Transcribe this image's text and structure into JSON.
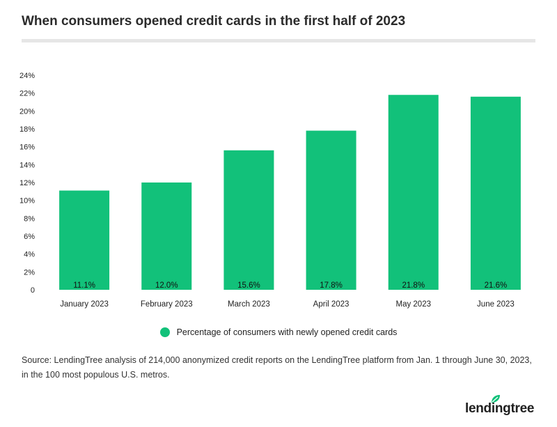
{
  "header": {
    "title": "When consumers opened credit cards in the first half of 2023"
  },
  "chart_data": {
    "type": "bar",
    "title": "When consumers opened credit cards in the first half of 2023",
    "xlabel": "",
    "ylabel": "",
    "categories": [
      "January 2023",
      "February 2023",
      "March 2023",
      "April 2023",
      "May 2023",
      "June 2023"
    ],
    "series": [
      {
        "name": "Percentage of consumers with newly opened credit cards",
        "values": [
          11.1,
          12.0,
          15.6,
          17.8,
          21.8,
          21.6
        ],
        "labels": [
          "11.1%",
          "12.0%",
          "15.6%",
          "17.8%",
          "21.8%",
          "21.6%"
        ],
        "color": "#12c17a"
      }
    ],
    "ylim": [
      0,
      24
    ],
    "yticks": [
      0,
      2,
      4,
      6,
      8,
      10,
      12,
      14,
      16,
      18,
      20,
      22,
      24
    ],
    "ytick_labels": [
      "0",
      "2%",
      "4%",
      "6%",
      "8%",
      "10%",
      "12%",
      "14%",
      "16%",
      "18%",
      "20%",
      "22%",
      "24%"
    ],
    "grid": false,
    "legend_position": "bottom-center"
  },
  "legend": {
    "label": "Percentage of consumers with newly opened credit cards",
    "color": "#12c17a"
  },
  "footer": {
    "source": "Source: LendingTree analysis of 214,000 anonymized credit reports on the LendingTree platform from Jan. 1 through June 30, 2023, in the 100 most populous U.S. metros.",
    "logo_text": "lendingtree",
    "logo_color": "#12c17a"
  }
}
